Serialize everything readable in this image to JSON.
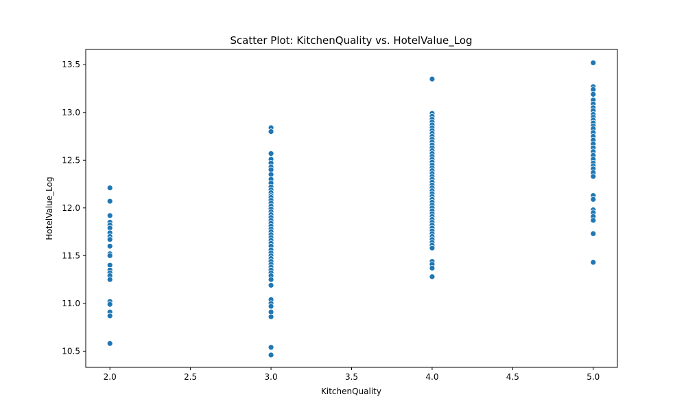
{
  "chart_data": {
    "type": "scatter",
    "title": "Scatter Plot: KitchenQuality vs. HotelValue_Log",
    "xlabel": "KitchenQuality",
    "ylabel": "HotelValue_Log",
    "xlim": [
      1.85,
      5.15
    ],
    "ylim": [
      10.33,
      13.66
    ],
    "x_ticks": [
      2.0,
      2.5,
      3.0,
      3.5,
      4.0,
      4.5,
      5.0
    ],
    "x_tick_labels": [
      "2.0",
      "2.5",
      "3.0",
      "3.5",
      "4.0",
      "4.5",
      "5.0"
    ],
    "y_ticks": [
      10.5,
      11.0,
      11.5,
      12.0,
      12.5,
      13.0,
      13.5
    ],
    "y_tick_labels": [
      "10.5",
      "11.0",
      "11.5",
      "12.0",
      "12.5",
      "13.0",
      "13.5"
    ],
    "grid": false,
    "marker_color": "#1f77b4",
    "points": [
      {
        "x": 2,
        "y": 12.21
      },
      {
        "x": 2,
        "y": 12.07
      },
      {
        "x": 2,
        "y": 11.92
      },
      {
        "x": 2,
        "y": 11.85
      },
      {
        "x": 2,
        "y": 11.82
      },
      {
        "x": 2,
        "y": 11.79
      },
      {
        "x": 2,
        "y": 11.74
      },
      {
        "x": 2,
        "y": 11.7
      },
      {
        "x": 2,
        "y": 11.67
      },
      {
        "x": 2,
        "y": 11.6
      },
      {
        "x": 2,
        "y": 11.52
      },
      {
        "x": 2,
        "y": 11.5
      },
      {
        "x": 2,
        "y": 11.4
      },
      {
        "x": 2,
        "y": 11.35
      },
      {
        "x": 2,
        "y": 11.32
      },
      {
        "x": 2,
        "y": 11.29
      },
      {
        "x": 2,
        "y": 11.25
      },
      {
        "x": 2,
        "y": 11.02
      },
      {
        "x": 2,
        "y": 10.99
      },
      {
        "x": 2,
        "y": 10.91
      },
      {
        "x": 2,
        "y": 10.87
      },
      {
        "x": 2,
        "y": 10.58
      },
      {
        "x": 3,
        "y": 12.84
      },
      {
        "x": 3,
        "y": 12.8
      },
      {
        "x": 3,
        "y": 12.57
      },
      {
        "x": 3,
        "y": 12.51
      },
      {
        "x": 3,
        "y": 12.47
      },
      {
        "x": 3,
        "y": 12.43
      },
      {
        "x": 3,
        "y": 12.4
      },
      {
        "x": 3,
        "y": 12.35
      },
      {
        "x": 3,
        "y": 12.3
      },
      {
        "x": 3,
        "y": 12.26
      },
      {
        "x": 3,
        "y": 12.22
      },
      {
        "x": 3,
        "y": 12.19
      },
      {
        "x": 3,
        "y": 12.16
      },
      {
        "x": 3,
        "y": 12.13
      },
      {
        "x": 3,
        "y": 12.11
      },
      {
        "x": 3,
        "y": 12.08
      },
      {
        "x": 3,
        "y": 12.05
      },
      {
        "x": 3,
        "y": 12.02
      },
      {
        "x": 3,
        "y": 11.99
      },
      {
        "x": 3,
        "y": 11.96
      },
      {
        "x": 3,
        "y": 11.93
      },
      {
        "x": 3,
        "y": 11.9
      },
      {
        "x": 3,
        "y": 11.87
      },
      {
        "x": 3,
        "y": 11.84
      },
      {
        "x": 3,
        "y": 11.81
      },
      {
        "x": 3,
        "y": 11.78
      },
      {
        "x": 3,
        "y": 11.75
      },
      {
        "x": 3,
        "y": 11.72
      },
      {
        "x": 3,
        "y": 11.69
      },
      {
        "x": 3,
        "y": 11.66
      },
      {
        "x": 3,
        "y": 11.63
      },
      {
        "x": 3,
        "y": 11.6
      },
      {
        "x": 3,
        "y": 11.56
      },
      {
        "x": 3,
        "y": 11.53
      },
      {
        "x": 3,
        "y": 11.5
      },
      {
        "x": 3,
        "y": 11.47
      },
      {
        "x": 3,
        "y": 11.44
      },
      {
        "x": 3,
        "y": 11.41
      },
      {
        "x": 3,
        "y": 11.38
      },
      {
        "x": 3,
        "y": 11.35
      },
      {
        "x": 3,
        "y": 11.32
      },
      {
        "x": 3,
        "y": 11.29
      },
      {
        "x": 3,
        "y": 11.25
      },
      {
        "x": 3,
        "y": 11.19
      },
      {
        "x": 3,
        "y": 11.04
      },
      {
        "x": 3,
        "y": 11.0
      },
      {
        "x": 3,
        "y": 10.97
      },
      {
        "x": 3,
        "y": 10.91
      },
      {
        "x": 3,
        "y": 10.86
      },
      {
        "x": 3,
        "y": 10.54
      },
      {
        "x": 3,
        "y": 10.46
      },
      {
        "x": 4,
        "y": 13.35
      },
      {
        "x": 4,
        "y": 12.99
      },
      {
        "x": 4,
        "y": 12.96
      },
      {
        "x": 4,
        "y": 12.93
      },
      {
        "x": 4,
        "y": 12.9
      },
      {
        "x": 4,
        "y": 12.87
      },
      {
        "x": 4,
        "y": 12.84
      },
      {
        "x": 4,
        "y": 12.81
      },
      {
        "x": 4,
        "y": 12.78
      },
      {
        "x": 4,
        "y": 12.75
      },
      {
        "x": 4,
        "y": 12.72
      },
      {
        "x": 4,
        "y": 12.69
      },
      {
        "x": 4,
        "y": 12.66
      },
      {
        "x": 4,
        "y": 12.63
      },
      {
        "x": 4,
        "y": 12.6
      },
      {
        "x": 4,
        "y": 12.57
      },
      {
        "x": 4,
        "y": 12.54
      },
      {
        "x": 4,
        "y": 12.51
      },
      {
        "x": 4,
        "y": 12.48
      },
      {
        "x": 4,
        "y": 12.45
      },
      {
        "x": 4,
        "y": 12.42
      },
      {
        "x": 4,
        "y": 12.39
      },
      {
        "x": 4,
        "y": 12.36
      },
      {
        "x": 4,
        "y": 12.33
      },
      {
        "x": 4,
        "y": 12.3
      },
      {
        "x": 4,
        "y": 12.27
      },
      {
        "x": 4,
        "y": 12.24
      },
      {
        "x": 4,
        "y": 12.21
      },
      {
        "x": 4,
        "y": 12.18
      },
      {
        "x": 4,
        "y": 12.15
      },
      {
        "x": 4,
        "y": 12.12
      },
      {
        "x": 4,
        "y": 12.09
      },
      {
        "x": 4,
        "y": 12.06
      },
      {
        "x": 4,
        "y": 12.03
      },
      {
        "x": 4,
        "y": 12.0
      },
      {
        "x": 4,
        "y": 11.97
      },
      {
        "x": 4,
        "y": 11.94
      },
      {
        "x": 4,
        "y": 11.91
      },
      {
        "x": 4,
        "y": 11.88
      },
      {
        "x": 4,
        "y": 11.85
      },
      {
        "x": 4,
        "y": 11.82
      },
      {
        "x": 4,
        "y": 11.79
      },
      {
        "x": 4,
        "y": 11.76
      },
      {
        "x": 4,
        "y": 11.73
      },
      {
        "x": 4,
        "y": 11.7
      },
      {
        "x": 4,
        "y": 11.67
      },
      {
        "x": 4,
        "y": 11.64
      },
      {
        "x": 4,
        "y": 11.61
      },
      {
        "x": 4,
        "y": 11.58
      },
      {
        "x": 4,
        "y": 11.44
      },
      {
        "x": 4,
        "y": 11.41
      },
      {
        "x": 4,
        "y": 11.37
      },
      {
        "x": 4,
        "y": 11.28
      },
      {
        "x": 5,
        "y": 13.52
      },
      {
        "x": 5,
        "y": 13.27
      },
      {
        "x": 5,
        "y": 13.24
      },
      {
        "x": 5,
        "y": 13.19
      },
      {
        "x": 5,
        "y": 13.13
      },
      {
        "x": 5,
        "y": 13.09
      },
      {
        "x": 5,
        "y": 13.05
      },
      {
        "x": 5,
        "y": 13.02
      },
      {
        "x": 5,
        "y": 12.98
      },
      {
        "x": 5,
        "y": 12.95
      },
      {
        "x": 5,
        "y": 12.92
      },
      {
        "x": 5,
        "y": 12.89
      },
      {
        "x": 5,
        "y": 12.86
      },
      {
        "x": 5,
        "y": 12.83
      },
      {
        "x": 5,
        "y": 12.79
      },
      {
        "x": 5,
        "y": 12.75
      },
      {
        "x": 5,
        "y": 12.71
      },
      {
        "x": 5,
        "y": 12.67
      },
      {
        "x": 5,
        "y": 12.63
      },
      {
        "x": 5,
        "y": 12.59
      },
      {
        "x": 5,
        "y": 12.55
      },
      {
        "x": 5,
        "y": 12.51
      },
      {
        "x": 5,
        "y": 12.47
      },
      {
        "x": 5,
        "y": 12.44
      },
      {
        "x": 5,
        "y": 12.41
      },
      {
        "x": 5,
        "y": 12.37
      },
      {
        "x": 5,
        "y": 12.33
      },
      {
        "x": 5,
        "y": 12.13
      },
      {
        "x": 5,
        "y": 12.09
      },
      {
        "x": 5,
        "y": 11.98
      },
      {
        "x": 5,
        "y": 11.95
      },
      {
        "x": 5,
        "y": 11.91
      },
      {
        "x": 5,
        "y": 11.87
      },
      {
        "x": 5,
        "y": 11.73
      },
      {
        "x": 5,
        "y": 11.43
      }
    ]
  }
}
